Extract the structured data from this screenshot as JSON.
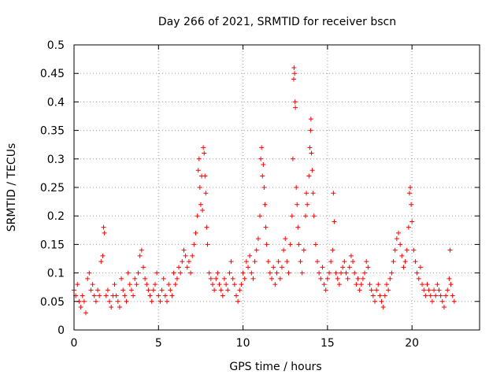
{
  "chart_data": {
    "type": "scatter",
    "title": "Day 266 of 2021, SRMTID for receiver bscn",
    "xlabel": "GPS time / hours",
    "ylabel": "SRMTID / TECUs",
    "xlim": [
      0,
      24
    ],
    "ylim": [
      0,
      0.5
    ],
    "xticks": [
      0,
      5,
      10,
      15,
      20
    ],
    "yticks": [
      0,
      0.05,
      0.1,
      0.15,
      0.2,
      0.25,
      0.3,
      0.35,
      0.4,
      0.45,
      0.5
    ],
    "grid": true,
    "marker": "+",
    "color": "#ff0000",
    "series": [
      {
        "name": "bscn",
        "points": [
          [
            0.0,
            0.07
          ],
          [
            0.1,
            0.06
          ],
          [
            0.2,
            0.08
          ],
          [
            0.3,
            0.05
          ],
          [
            0.4,
            0.04
          ],
          [
            0.5,
            0.06
          ],
          [
            0.6,
            0.05
          ],
          [
            0.7,
            0.03
          ],
          [
            0.8,
            0.09
          ],
          [
            0.9,
            0.1
          ],
          [
            1.0,
            0.07
          ],
          [
            1.1,
            0.08
          ],
          [
            1.2,
            0.06
          ],
          [
            1.3,
            0.05
          ],
          [
            1.4,
            0.07
          ],
          [
            1.5,
            0.06
          ],
          [
            1.6,
            0.12
          ],
          [
            1.7,
            0.13
          ],
          [
            1.8,
            0.17
          ],
          [
            1.75,
            0.18
          ],
          [
            1.9,
            0.06
          ],
          [
            2.0,
            0.07
          ],
          [
            2.1,
            0.05
          ],
          [
            2.2,
            0.04
          ],
          [
            2.3,
            0.06
          ],
          [
            2.4,
            0.08
          ],
          [
            2.5,
            0.06
          ],
          [
            2.6,
            0.05
          ],
          [
            2.7,
            0.04
          ],
          [
            2.8,
            0.09
          ],
          [
            2.9,
            0.07
          ],
          [
            3.0,
            0.06
          ],
          [
            3.1,
            0.05
          ],
          [
            3.2,
            0.1
          ],
          [
            3.3,
            0.08
          ],
          [
            3.4,
            0.07
          ],
          [
            3.5,
            0.06
          ],
          [
            3.6,
            0.09
          ],
          [
            3.7,
            0.08
          ],
          [
            3.8,
            0.1
          ],
          [
            3.9,
            0.13
          ],
          [
            4.0,
            0.14
          ],
          [
            4.1,
            0.11
          ],
          [
            4.2,
            0.09
          ],
          [
            4.3,
            0.08
          ],
          [
            4.4,
            0.07
          ],
          [
            4.5,
            0.06
          ],
          [
            4.6,
            0.05
          ],
          [
            4.7,
            0.07
          ],
          [
            4.8,
            0.08
          ],
          [
            4.9,
            0.1
          ],
          [
            5.0,
            0.06
          ],
          [
            5.1,
            0.05
          ],
          [
            5.2,
            0.07
          ],
          [
            5.3,
            0.09
          ],
          [
            5.4,
            0.06
          ],
          [
            5.5,
            0.05
          ],
          [
            5.6,
            0.08
          ],
          [
            5.7,
            0.07
          ],
          [
            5.8,
            0.06
          ],
          [
            5.9,
            0.1
          ],
          [
            6.0,
            0.08
          ],
          [
            6.1,
            0.09
          ],
          [
            6.2,
            0.11
          ],
          [
            6.3,
            0.1
          ],
          [
            6.4,
            0.12
          ],
          [
            6.5,
            0.14
          ],
          [
            6.6,
            0.13
          ],
          [
            6.7,
            0.11
          ],
          [
            6.8,
            0.12
          ],
          [
            6.9,
            0.1
          ],
          [
            7.0,
            0.13
          ],
          [
            7.1,
            0.15
          ],
          [
            7.2,
            0.17
          ],
          [
            7.3,
            0.2
          ],
          [
            7.35,
            0.28
          ],
          [
            7.4,
            0.3
          ],
          [
            7.45,
            0.25
          ],
          [
            7.5,
            0.22
          ],
          [
            7.55,
            0.27
          ],
          [
            7.6,
            0.21
          ],
          [
            7.65,
            0.32
          ],
          [
            7.7,
            0.31
          ],
          [
            7.75,
            0.27
          ],
          [
            7.8,
            0.24
          ],
          [
            7.85,
            0.18
          ],
          [
            7.9,
            0.15
          ],
          [
            8.0,
            0.1
          ],
          [
            8.1,
            0.09
          ],
          [
            8.2,
            0.08
          ],
          [
            8.3,
            0.07
          ],
          [
            8.4,
            0.09
          ],
          [
            8.5,
            0.1
          ],
          [
            8.6,
            0.08
          ],
          [
            8.7,
            0.07
          ],
          [
            8.8,
            0.06
          ],
          [
            8.9,
            0.09
          ],
          [
            9.0,
            0.08
          ],
          [
            9.1,
            0.07
          ],
          [
            9.2,
            0.1
          ],
          [
            9.3,
            0.12
          ],
          [
            9.4,
            0.09
          ],
          [
            9.5,
            0.08
          ],
          [
            9.6,
            0.06
          ],
          [
            9.7,
            0.05
          ],
          [
            9.8,
            0.07
          ],
          [
            9.9,
            0.08
          ],
          [
            10.0,
            0.1
          ],
          [
            10.1,
            0.09
          ],
          [
            10.2,
            0.12
          ],
          [
            10.3,
            0.11
          ],
          [
            10.4,
            0.13
          ],
          [
            10.5,
            0.1
          ],
          [
            10.6,
            0.09
          ],
          [
            10.7,
            0.12
          ],
          [
            10.8,
            0.14
          ],
          [
            10.9,
            0.16
          ],
          [
            11.0,
            0.2
          ],
          [
            11.05,
            0.3
          ],
          [
            11.1,
            0.32
          ],
          [
            11.15,
            0.27
          ],
          [
            11.2,
            0.29
          ],
          [
            11.25,
            0.25
          ],
          [
            11.3,
            0.22
          ],
          [
            11.35,
            0.18
          ],
          [
            11.4,
            0.15
          ],
          [
            11.5,
            0.12
          ],
          [
            11.6,
            0.1
          ],
          [
            11.7,
            0.09
          ],
          [
            11.8,
            0.11
          ],
          [
            11.9,
            0.08
          ],
          [
            12.0,
            0.1
          ],
          [
            12.1,
            0.12
          ],
          [
            12.2,
            0.09
          ],
          [
            12.3,
            0.11
          ],
          [
            12.4,
            0.14
          ],
          [
            12.5,
            0.16
          ],
          [
            12.6,
            0.12
          ],
          [
            12.7,
            0.1
          ],
          [
            12.8,
            0.15
          ],
          [
            12.9,
            0.2
          ],
          [
            12.95,
            0.3
          ],
          [
            13.0,
            0.44
          ],
          [
            13.02,
            0.46
          ],
          [
            13.05,
            0.45
          ],
          [
            13.08,
            0.4
          ],
          [
            13.1,
            0.39
          ],
          [
            13.15,
            0.25
          ],
          [
            13.2,
            0.22
          ],
          [
            13.25,
            0.18
          ],
          [
            13.3,
            0.15
          ],
          [
            13.4,
            0.12
          ],
          [
            13.5,
            0.1
          ],
          [
            13.6,
            0.14
          ],
          [
            13.7,
            0.2
          ],
          [
            13.75,
            0.24
          ],
          [
            13.8,
            0.22
          ],
          [
            13.9,
            0.27
          ],
          [
            13.95,
            0.32
          ],
          [
            14.0,
            0.35
          ],
          [
            14.02,
            0.37
          ],
          [
            14.05,
            0.31
          ],
          [
            14.1,
            0.28
          ],
          [
            14.15,
            0.24
          ],
          [
            14.2,
            0.2
          ],
          [
            14.3,
            0.15
          ],
          [
            14.4,
            0.12
          ],
          [
            14.5,
            0.1
          ],
          [
            14.6,
            0.09
          ],
          [
            14.7,
            0.11
          ],
          [
            14.8,
            0.08
          ],
          [
            14.9,
            0.07
          ],
          [
            15.0,
            0.09
          ],
          [
            15.1,
            0.1
          ],
          [
            15.2,
            0.12
          ],
          [
            15.3,
            0.14
          ],
          [
            15.35,
            0.24
          ],
          [
            15.4,
            0.19
          ],
          [
            15.5,
            0.1
          ],
          [
            15.6,
            0.09
          ],
          [
            15.7,
            0.08
          ],
          [
            15.8,
            0.1
          ],
          [
            15.9,
            0.11
          ],
          [
            16.0,
            0.12
          ],
          [
            16.1,
            0.1
          ],
          [
            16.2,
            0.09
          ],
          [
            16.3,
            0.11
          ],
          [
            16.4,
            0.13
          ],
          [
            16.5,
            0.12
          ],
          [
            16.6,
            0.1
          ],
          [
            16.7,
            0.08
          ],
          [
            16.8,
            0.09
          ],
          [
            16.9,
            0.07
          ],
          [
            17.0,
            0.08
          ],
          [
            17.1,
            0.09
          ],
          [
            17.2,
            0.1
          ],
          [
            17.3,
            0.12
          ],
          [
            17.4,
            0.11
          ],
          [
            17.5,
            0.08
          ],
          [
            17.6,
            0.07
          ],
          [
            17.7,
            0.06
          ],
          [
            17.8,
            0.05
          ],
          [
            17.9,
            0.07
          ],
          [
            18.0,
            0.08
          ],
          [
            18.1,
            0.06
          ],
          [
            18.2,
            0.05
          ],
          [
            18.3,
            0.04
          ],
          [
            18.4,
            0.06
          ],
          [
            18.5,
            0.08
          ],
          [
            18.6,
            0.07
          ],
          [
            18.7,
            0.09
          ],
          [
            18.8,
            0.1
          ],
          [
            18.9,
            0.12
          ],
          [
            19.0,
            0.14
          ],
          [
            19.1,
            0.16
          ],
          [
            19.2,
            0.17
          ],
          [
            19.3,
            0.15
          ],
          [
            19.4,
            0.13
          ],
          [
            19.5,
            0.11
          ],
          [
            19.6,
            0.12
          ],
          [
            19.7,
            0.14
          ],
          [
            19.8,
            0.18
          ],
          [
            19.85,
            0.24
          ],
          [
            19.9,
            0.25
          ],
          [
            19.95,
            0.22
          ],
          [
            20.0,
            0.19
          ],
          [
            20.1,
            0.14
          ],
          [
            20.2,
            0.12
          ],
          [
            20.3,
            0.1
          ],
          [
            20.4,
            0.09
          ],
          [
            20.5,
            0.11
          ],
          [
            20.6,
            0.08
          ],
          [
            20.7,
            0.07
          ],
          [
            20.8,
            0.06
          ],
          [
            20.9,
            0.08
          ],
          [
            21.0,
            0.07
          ],
          [
            21.1,
            0.06
          ],
          [
            21.2,
            0.05
          ],
          [
            21.3,
            0.07
          ],
          [
            21.4,
            0.06
          ],
          [
            21.5,
            0.08
          ],
          [
            21.6,
            0.07
          ],
          [
            21.7,
            0.06
          ],
          [
            21.8,
            0.05
          ],
          [
            21.9,
            0.04
          ],
          [
            22.0,
            0.06
          ],
          [
            22.1,
            0.07
          ],
          [
            22.2,
            0.09
          ],
          [
            22.25,
            0.14
          ],
          [
            22.3,
            0.08
          ],
          [
            22.4,
            0.06
          ],
          [
            22.5,
            0.05
          ]
        ]
      }
    ]
  }
}
